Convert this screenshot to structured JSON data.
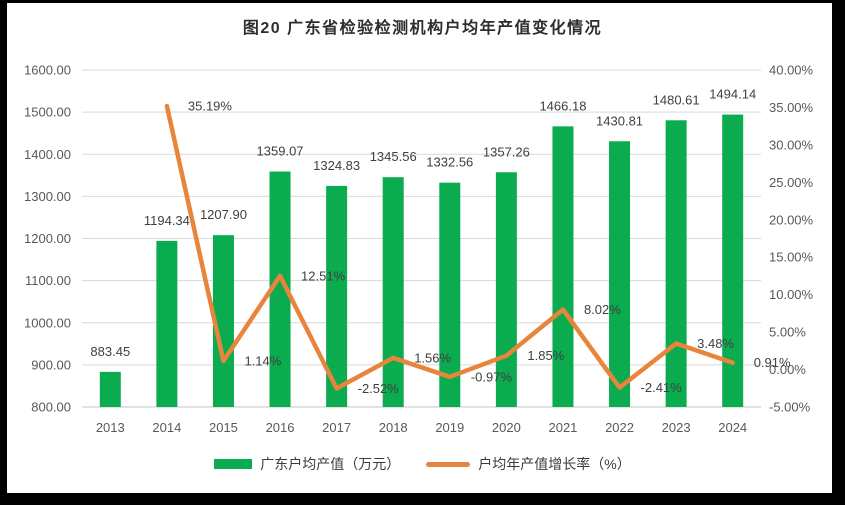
{
  "title": "图20 广东省检验检测机构户均年产值变化情况",
  "legend": [
    {
      "label": "广东户均产值（万元）",
      "type": "bar-swatch"
    },
    {
      "label": "户均年产值增长率（%）",
      "type": "line-swatch"
    }
  ],
  "colors": {
    "bar": "#0BAB50",
    "line": "#E8853C",
    "grid": "#D9D9D9",
    "axis_line": "#C6C6C6",
    "tick_text": "#595959",
    "label_text": "#404040",
    "panel": "#FFFFFF",
    "frame": "#000000"
  },
  "chart_data": {
    "type": "bar",
    "subtype": "bar+line combo, dual axis",
    "title": "图20 广东省检验检测机构户均年产值变化情况",
    "categories": [
      "2013",
      "2014",
      "2015",
      "2016",
      "2017",
      "2018",
      "2019",
      "2020",
      "2021",
      "2022",
      "2023",
      "2024"
    ],
    "series": [
      {
        "name": "广东户均产值（万元）",
        "type": "bar",
        "axis": "left",
        "values": [
          883.45,
          1194.34,
          1207.9,
          1359.07,
          1324.83,
          1345.56,
          1332.56,
          1357.26,
          1466.18,
          1430.81,
          1480.61,
          1494.14
        ],
        "labels": [
          "883.45",
          "1194.34",
          "1207.90",
          "1359.07",
          "1324.83",
          "1345.56",
          "1332.56",
          "1357.26",
          "1466.18",
          "1430.81",
          "1480.61",
          "1494.14"
        ]
      },
      {
        "name": "户均年产值增长率（%）",
        "type": "line",
        "axis": "right",
        "values": [
          null,
          35.19,
          1.14,
          12.51,
          -2.52,
          1.56,
          -0.97,
          1.85,
          8.02,
          -2.41,
          3.48,
          0.91
        ],
        "labels": [
          null,
          "35.19%",
          "1.14%",
          "12.51%",
          "-2.52%",
          "1.56%",
          "-0.97%",
          "1.85%",
          "8.02%",
          "-2.41%",
          "3.48%",
          "0.91%"
        ]
      }
    ],
    "left_axis": {
      "min": 800,
      "max": 1600,
      "step": 100,
      "tick_labels": [
        "800.00",
        "900.00",
        "1000.00",
        "1100.00",
        "1200.00",
        "1300.00",
        "1400.00",
        "1500.00",
        "1600.00"
      ]
    },
    "right_axis": {
      "min": -5,
      "max": 40,
      "step": 5,
      "tick_labels": [
        "-5.00%",
        "0.00%",
        "5.00%",
        "10.00%",
        "15.00%",
        "20.00%",
        "25.00%",
        "30.00%",
        "35.00%",
        "40.00%"
      ]
    },
    "grid": true,
    "legend_position": "bottom"
  }
}
